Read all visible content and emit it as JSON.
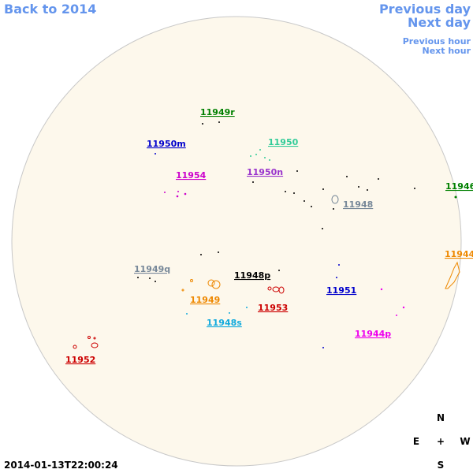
{
  "nav": {
    "back": "Back to 2014",
    "previous_day": "Previous day",
    "next_day": "Next day",
    "previous_hour": "Previous hour",
    "next_hour": "Next hour"
  },
  "timestamp": "2014-01-13T22:00:24",
  "compass": {
    "north": "N",
    "east": "E",
    "center": "+",
    "west": "W",
    "south": "S"
  },
  "regions": [
    {
      "label": "11949r",
      "color": "#008000"
    },
    {
      "label": "11950m",
      "color": "#0000cc"
    },
    {
      "label": "11950",
      "color": "#33cc99"
    },
    {
      "label": "11954",
      "color": "#cc00cc"
    },
    {
      "label": "11950n",
      "color": "#9933cc"
    },
    {
      "label": "11946",
      "color": "#008000"
    },
    {
      "label": "11948",
      "color": "#778899"
    },
    {
      "label": "11944",
      "color": "#ee8800"
    },
    {
      "label": "11949q",
      "color": "#778899"
    },
    {
      "label": "11948p",
      "color": "#000000"
    },
    {
      "label": "11951",
      "color": "#0000cc"
    },
    {
      "label": "11949",
      "color": "#ee8800"
    },
    {
      "label": "11953",
      "color": "#cc0000"
    },
    {
      "label": "11948s",
      "color": "#11aadd"
    },
    {
      "label": "11944p",
      "color": "#ee00ee"
    },
    {
      "label": "11952",
      "color": "#cc0000"
    }
  ]
}
